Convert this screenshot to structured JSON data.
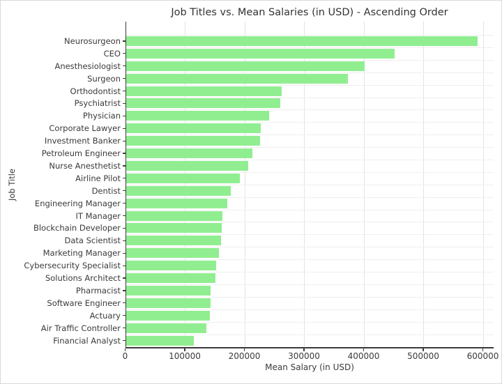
{
  "chart_data": {
    "type": "bar",
    "orientation": "horizontal",
    "title": "Job Titles vs. Mean Salaries (in USD) - Ascending Order",
    "xlabel": "Mean Salary (in USD)",
    "ylabel": "Job Title",
    "categories": [
      "Neurosurgeon",
      "CEO",
      "Anesthesiologist",
      "Surgeon",
      "Orthodontist",
      "Psychiatrist",
      "Physician",
      "Corporate Lawyer",
      "Investment Banker",
      "Petroleum Engineer",
      "Nurse Anesthetist",
      "Airline Pilot",
      "Dentist",
      "Engineering Manager",
      "IT Manager",
      "Blockchain Developer",
      "Data Scientist",
      "Marketing Manager",
      "Cybersecurity Specialist",
      "Solutions Architect",
      "Pharmacist",
      "Software Engineer",
      "Actuary",
      "Air Traffic Controller",
      "Financial Analyst"
    ],
    "values": [
      590000,
      450000,
      400000,
      372000,
      261000,
      259000,
      240000,
      226000,
      225000,
      212000,
      205000,
      191000,
      175000,
      170000,
      161000,
      160000,
      159000,
      156000,
      151000,
      150000,
      142000,
      141000,
      140000,
      134000,
      114000
    ],
    "xlim": [
      0,
      618000
    ],
    "xticks": [
      0,
      100000,
      200000,
      300000,
      400000,
      500000,
      600000
    ],
    "xtick_labels": [
      "0",
      "100000",
      "200000",
      "300000",
      "400000",
      "500000",
      "600000"
    ],
    "grid": true,
    "legend": "none",
    "bar_color": "#90EE90",
    "gridline_color": "#e4e4e4",
    "spine_color": "#3b3b3b",
    "text_color": "#3a3a3a",
    "background": "#ffffff"
  }
}
